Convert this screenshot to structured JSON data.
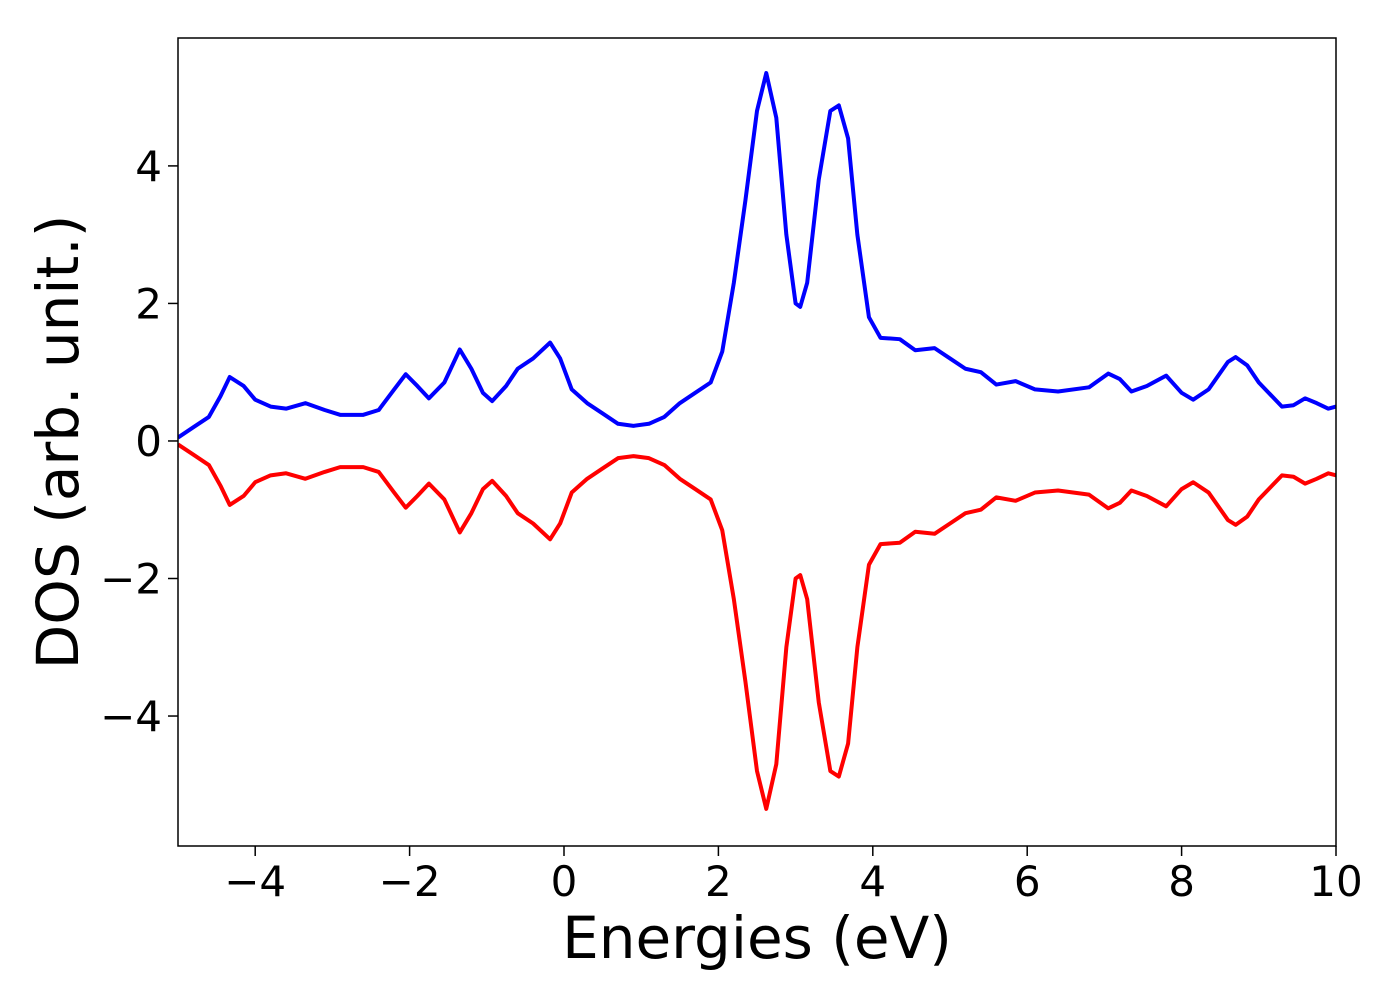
{
  "chart_data": {
    "type": "line",
    "x_label": "Energies (eV)",
    "y_label": "DOS (arb. unit.)",
    "x": [
      -5.0,
      -4.8,
      -4.6,
      -4.45,
      -4.33,
      -4.15,
      -4.0,
      -3.8,
      -3.6,
      -3.35,
      -3.1,
      -2.9,
      -2.6,
      -2.4,
      -2.2,
      -2.05,
      -1.9,
      -1.75,
      -1.55,
      -1.35,
      -1.2,
      -1.05,
      -0.93,
      -0.75,
      -0.6,
      -0.4,
      -0.18,
      -0.05,
      0.1,
      0.3,
      0.5,
      0.7,
      0.9,
      1.1,
      1.3,
      1.5,
      1.7,
      1.9,
      2.05,
      2.2,
      2.35,
      2.5,
      2.62,
      2.75,
      2.88,
      3.0,
      3.06,
      3.15,
      3.3,
      3.45,
      3.56,
      3.68,
      3.8,
      3.95,
      4.1,
      4.35,
      4.55,
      4.8,
      5.0,
      5.2,
      5.4,
      5.6,
      5.85,
      6.1,
      6.4,
      6.8,
      7.05,
      7.2,
      7.35,
      7.55,
      7.8,
      8.0,
      8.15,
      8.35,
      8.6,
      8.7,
      8.85,
      9.0,
      9.3,
      9.45,
      9.6,
      9.75,
      9.9,
      10.0
    ],
    "series": [
      {
        "color": "#0000ff",
        "values": [
          0.05,
          0.2,
          0.35,
          0.65,
          0.93,
          0.8,
          0.6,
          0.5,
          0.47,
          0.55,
          0.45,
          0.38,
          0.38,
          0.45,
          0.75,
          0.97,
          0.8,
          0.62,
          0.85,
          1.33,
          1.05,
          0.7,
          0.58,
          0.8,
          1.05,
          1.2,
          1.43,
          1.2,
          0.75,
          0.55,
          0.4,
          0.25,
          0.22,
          0.25,
          0.35,
          0.55,
          0.7,
          0.85,
          1.3,
          2.3,
          3.5,
          4.8,
          5.35,
          4.7,
          3.0,
          2.0,
          1.95,
          2.3,
          3.8,
          4.8,
          4.88,
          4.4,
          3.0,
          1.8,
          1.5,
          1.48,
          1.32,
          1.35,
          1.2,
          1.05,
          1.0,
          0.82,
          0.87,
          0.75,
          0.72,
          0.78,
          0.98,
          0.9,
          0.72,
          0.8,
          0.95,
          0.7,
          0.6,
          0.75,
          1.15,
          1.22,
          1.1,
          0.85,
          0.5,
          0.52,
          0.62,
          0.55,
          0.47,
          0.5
        ]
      },
      {
        "color": "#ff0000",
        "values": [
          -0.05,
          -0.2,
          -0.35,
          -0.65,
          -0.93,
          -0.8,
          -0.6,
          -0.5,
          -0.47,
          -0.55,
          -0.45,
          -0.38,
          -0.38,
          -0.45,
          -0.75,
          -0.97,
          -0.8,
          -0.62,
          -0.85,
          -1.33,
          -1.05,
          -0.7,
          -0.58,
          -0.8,
          -1.05,
          -1.2,
          -1.43,
          -1.2,
          -0.75,
          -0.55,
          -0.4,
          -0.25,
          -0.22,
          -0.25,
          -0.35,
          -0.55,
          -0.7,
          -0.85,
          -1.3,
          -2.3,
          -3.5,
          -4.8,
          -5.35,
          -4.7,
          -3.0,
          -2.0,
          -1.95,
          -2.3,
          -3.8,
          -4.8,
          -4.88,
          -4.4,
          -3.0,
          -1.8,
          -1.5,
          -1.48,
          -1.32,
          -1.35,
          -1.2,
          -1.05,
          -1.0,
          -0.82,
          -0.87,
          -0.75,
          -0.72,
          -0.78,
          -0.98,
          -0.9,
          -0.72,
          -0.8,
          -0.95,
          -0.7,
          -0.6,
          -0.75,
          -1.15,
          -1.22,
          -1.1,
          -0.85,
          -0.5,
          -0.52,
          -0.62,
          -0.55,
          -0.47,
          -0.5
        ]
      }
    ],
    "xlim": [
      -5,
      10
    ],
    "xticks": [
      {
        "value": -4,
        "label": "−4"
      },
      {
        "value": -2,
        "label": "−2"
      },
      0,
      2,
      4,
      6,
      8,
      10
    ],
    "ylim": [
      -5.89,
      5.86
    ],
    "yticks": [
      {
        "value": -4,
        "label": "−4"
      },
      {
        "value": -2,
        "label": "−2"
      },
      0,
      2,
      4
    ],
    "grid": false
  }
}
